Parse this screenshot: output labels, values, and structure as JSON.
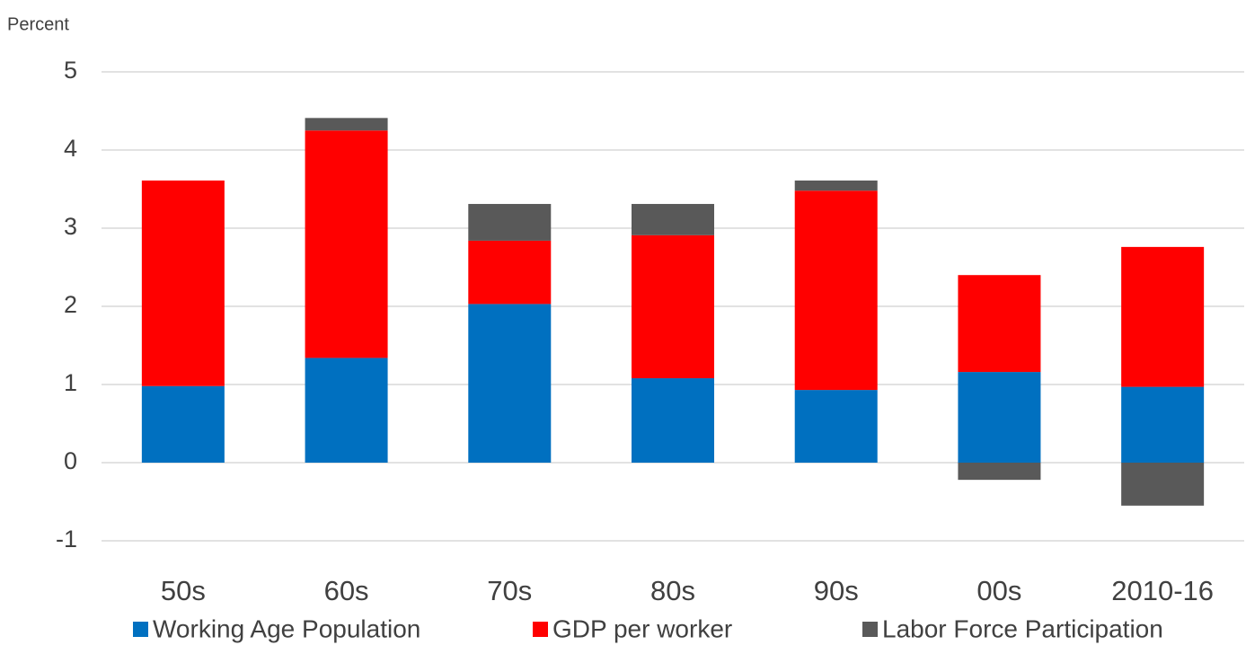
{
  "chart_data": {
    "type": "stacked_bar",
    "ylabel": "Percent",
    "categories": [
      "50s",
      "60s",
      "70s",
      "80s",
      "90s",
      "00s",
      "2010-16"
    ],
    "series": [
      {
        "name": "Working Age Population",
        "color": "#0070c0",
        "values": [
          0.98,
          1.34,
          2.03,
          1.08,
          0.93,
          1.16,
          0.97
        ]
      },
      {
        "name": "GDP per worker",
        "color": "#ff0000",
        "values": [
          2.63,
          2.91,
          0.81,
          1.83,
          2.55,
          1.24,
          1.79
        ]
      },
      {
        "name": "Labor Force Participation",
        "color": "#595959",
        "values": [
          0,
          0.16,
          0.47,
          0.4,
          0.13,
          -0.22,
          -0.55
        ]
      }
    ],
    "ylim": [
      -1,
      5
    ],
    "yticks": [
      -1,
      0,
      1,
      2,
      3,
      4,
      5
    ],
    "grid": true,
    "legend": "bottom"
  }
}
